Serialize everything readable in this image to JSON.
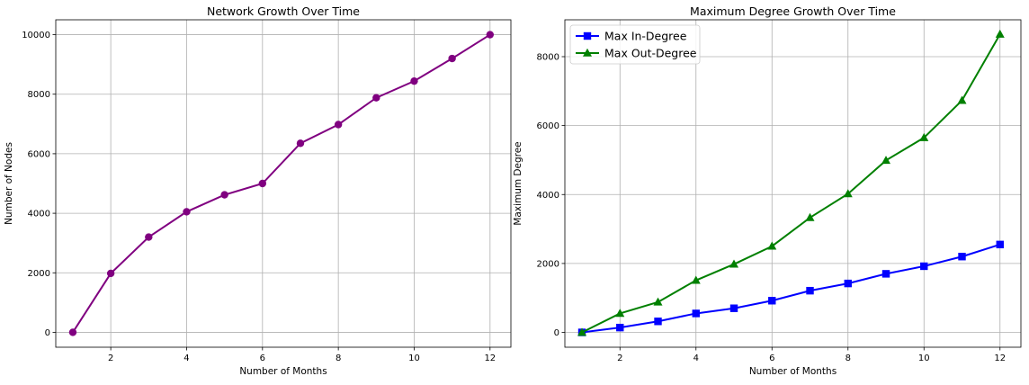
{
  "chart_data": [
    {
      "type": "line",
      "title": "Network Growth Over Time",
      "xlabel": "Number of Months",
      "ylabel": "Number of Nodes",
      "xlim": [
        0.55,
        12.55
      ],
      "ylim": [
        -500,
        10500
      ],
      "xticks": [
        2,
        4,
        6,
        8,
        10,
        12
      ],
      "yticks": [
        0,
        2000,
        4000,
        6000,
        8000,
        10000
      ],
      "grid": true,
      "series": [
        {
          "color": "#800080",
          "marker": "circle",
          "x": [
            1,
            2,
            3,
            4,
            5,
            6,
            7,
            8,
            9,
            10,
            11,
            12
          ],
          "values": [
            0,
            1980,
            3200,
            4050,
            4620,
            5000,
            6350,
            6980,
            7880,
            8440,
            9200,
            10000
          ]
        }
      ]
    },
    {
      "type": "line",
      "title": "Maximum Degree Growth Over Time",
      "xlabel": "Number of Months",
      "ylabel": "Maximum Degree",
      "xlim": [
        0.55,
        12.55
      ],
      "ylim": [
        -430,
        9070
      ],
      "xticks": [
        2,
        4,
        6,
        8,
        10,
        12
      ],
      "yticks": [
        0,
        2000,
        4000,
        6000,
        8000
      ],
      "grid": true,
      "legend": "top-left",
      "series": [
        {
          "name": "Max In-Degree",
          "color": "#0000ff",
          "marker": "square",
          "x": [
            1,
            2,
            3,
            4,
            5,
            6,
            7,
            8,
            9,
            10,
            11,
            12
          ],
          "values": [
            0,
            140,
            320,
            550,
            700,
            920,
            1210,
            1420,
            1700,
            1920,
            2200,
            2550
          ]
        },
        {
          "name": "Max Out-Degree",
          "color": "#008000",
          "marker": "triangle",
          "x": [
            1,
            2,
            3,
            4,
            5,
            6,
            7,
            8,
            9,
            10,
            11,
            12
          ],
          "values": [
            0,
            550,
            880,
            1510,
            1980,
            2500,
            3330,
            4020,
            4990,
            5650,
            6730,
            8650
          ]
        }
      ]
    }
  ]
}
